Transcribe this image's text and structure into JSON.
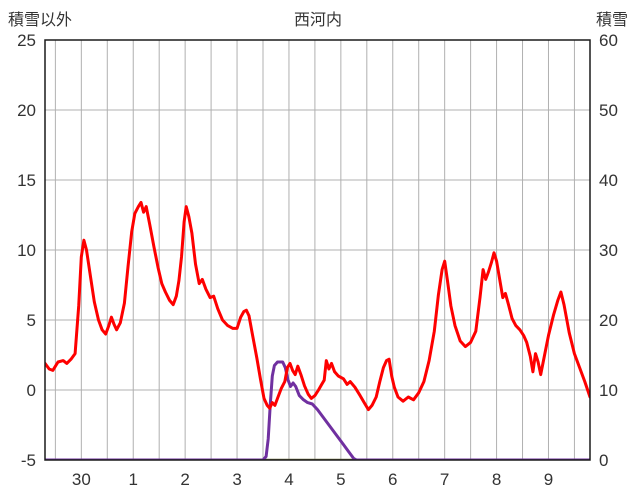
{
  "chart_data": {
    "type": "line",
    "title": "西河内",
    "left_axis_title": "積雪以外",
    "right_axis_title": "積雪",
    "x_domain": [
      -0.7,
      9.8
    ],
    "x_gridlines": {
      "from": -0.5,
      "to": 9.5,
      "step": 0.5
    },
    "x_tick_labels": [
      {
        "label": "30",
        "x": 0
      },
      {
        "label": "1",
        "x": 1
      },
      {
        "label": "2",
        "x": 2
      },
      {
        "label": "3",
        "x": 3
      },
      {
        "label": "4",
        "x": 4
      },
      {
        "label": "5",
        "x": 5
      },
      {
        "label": "6",
        "x": 6
      },
      {
        "label": "7",
        "x": 7
      },
      {
        "label": "8",
        "x": 8
      },
      {
        "label": "9",
        "x": 9
      }
    ],
    "left_axis": {
      "min": -5,
      "max": 25,
      "ticks": [
        25,
        20,
        15,
        10,
        5,
        0,
        -5
      ]
    },
    "right_axis": {
      "min": 0,
      "max": 60,
      "ticks": [
        60,
        50,
        40,
        30,
        20,
        10,
        0
      ]
    },
    "colors": {
      "red": "#fe0000",
      "purple": "#7030a0",
      "olive": "#6f6f3a",
      "grid": "#b0b0b0",
      "border": "#1a1a1a",
      "text": "#333333"
    },
    "series": [
      {
        "name": "line-olive",
        "axis": "right",
        "color_key": "olive",
        "width": 2.5,
        "points": [
          [
            3.55,
            0
          ],
          [
            5.3,
            0
          ]
        ]
      },
      {
        "name": "line-purple",
        "axis": "right",
        "color_key": "purple",
        "width": 3,
        "points": [
          [
            -0.7,
            0
          ],
          [
            3.5,
            0
          ],
          [
            3.56,
            0.5
          ],
          [
            3.6,
            3
          ],
          [
            3.64,
            8
          ],
          [
            3.68,
            12
          ],
          [
            3.72,
            13.5
          ],
          [
            3.78,
            14
          ],
          [
            3.88,
            14
          ],
          [
            3.93,
            13.2
          ],
          [
            3.98,
            11.5
          ],
          [
            4.03,
            10.5
          ],
          [
            4.08,
            11
          ],
          [
            4.13,
            10.5
          ],
          [
            4.2,
            9.2
          ],
          [
            4.28,
            8.6
          ],
          [
            4.36,
            8.2
          ],
          [
            4.45,
            8.0
          ],
          [
            4.55,
            7.2
          ],
          [
            4.65,
            6.2
          ],
          [
            4.75,
            5.2
          ],
          [
            4.85,
            4.2
          ],
          [
            4.95,
            3.2
          ],
          [
            5.05,
            2.2
          ],
          [
            5.15,
            1.2
          ],
          [
            5.25,
            0.2
          ],
          [
            5.3,
            0
          ],
          [
            9.8,
            0
          ]
        ]
      },
      {
        "name": "line-red",
        "axis": "left",
        "color_key": "red",
        "width": 3,
        "points": [
          [
            -0.7,
            1.9
          ],
          [
            -0.62,
            1.5
          ],
          [
            -0.55,
            1.4
          ],
          [
            -0.45,
            2.0
          ],
          [
            -0.35,
            2.1
          ],
          [
            -0.28,
            1.9
          ],
          [
            -0.2,
            2.2
          ],
          [
            -0.12,
            2.6
          ],
          [
            -0.05,
            6.0
          ],
          [
            0.0,
            9.5
          ],
          [
            0.05,
            10.7
          ],
          [
            0.1,
            10.0
          ],
          [
            0.18,
            8.0
          ],
          [
            0.25,
            6.3
          ],
          [
            0.33,
            5.0
          ],
          [
            0.4,
            4.3
          ],
          [
            0.47,
            4.0
          ],
          [
            0.53,
            4.6
          ],
          [
            0.58,
            5.2
          ],
          [
            0.63,
            4.7
          ],
          [
            0.68,
            4.3
          ],
          [
            0.75,
            4.8
          ],
          [
            0.83,
            6.2
          ],
          [
            0.9,
            8.8
          ],
          [
            0.97,
            11.3
          ],
          [
            1.03,
            12.6
          ],
          [
            1.1,
            13.1
          ],
          [
            1.15,
            13.4
          ],
          [
            1.2,
            12.7
          ],
          [
            1.25,
            13.1
          ],
          [
            1.32,
            11.8
          ],
          [
            1.4,
            10.2
          ],
          [
            1.48,
            8.7
          ],
          [
            1.55,
            7.6
          ],
          [
            1.62,
            7.0
          ],
          [
            1.7,
            6.4
          ],
          [
            1.77,
            6.1
          ],
          [
            1.83,
            6.7
          ],
          [
            1.88,
            7.8
          ],
          [
            1.93,
            9.5
          ],
          [
            1.98,
            12.0
          ],
          [
            2.02,
            13.1
          ],
          [
            2.07,
            12.4
          ],
          [
            2.13,
            11.2
          ],
          [
            2.2,
            9.0
          ],
          [
            2.27,
            7.6
          ],
          [
            2.33,
            7.9
          ],
          [
            2.4,
            7.2
          ],
          [
            2.48,
            6.6
          ],
          [
            2.55,
            6.7
          ],
          [
            2.63,
            5.8
          ],
          [
            2.72,
            5.0
          ],
          [
            2.82,
            4.6
          ],
          [
            2.92,
            4.4
          ],
          [
            3.0,
            4.4
          ],
          [
            3.07,
            5.2
          ],
          [
            3.13,
            5.6
          ],
          [
            3.18,
            5.7
          ],
          [
            3.23,
            5.3
          ],
          [
            3.3,
            3.9
          ],
          [
            3.38,
            2.3
          ],
          [
            3.45,
            0.8
          ],
          [
            3.52,
            -0.6
          ],
          [
            3.58,
            -1.1
          ],
          [
            3.63,
            -1.3
          ],
          [
            3.68,
            -0.9
          ],
          [
            3.73,
            -1.1
          ],
          [
            3.78,
            -0.6
          ],
          [
            3.85,
            0.1
          ],
          [
            3.92,
            0.6
          ],
          [
            3.97,
            1.6
          ],
          [
            4.02,
            1.9
          ],
          [
            4.07,
            1.4
          ],
          [
            4.12,
            1.1
          ],
          [
            4.17,
            1.7
          ],
          [
            4.23,
            1.1
          ],
          [
            4.3,
            0.3
          ],
          [
            4.37,
            -0.3
          ],
          [
            4.43,
            -0.6
          ],
          [
            4.5,
            -0.4
          ],
          [
            4.57,
            0.0
          ],
          [
            4.63,
            0.4
          ],
          [
            4.68,
            0.7
          ],
          [
            4.72,
            2.1
          ],
          [
            4.77,
            1.5
          ],
          [
            4.82,
            1.9
          ],
          [
            4.88,
            1.3
          ],
          [
            4.95,
            1.0
          ],
          [
            5.05,
            0.8
          ],
          [
            5.12,
            0.4
          ],
          [
            5.18,
            0.6
          ],
          [
            5.27,
            0.2
          ],
          [
            5.37,
            -0.4
          ],
          [
            5.45,
            -0.9
          ],
          [
            5.53,
            -1.4
          ],
          [
            5.6,
            -1.1
          ],
          [
            5.68,
            -0.5
          ],
          [
            5.75,
            0.6
          ],
          [
            5.82,
            1.6
          ],
          [
            5.88,
            2.1
          ],
          [
            5.93,
            2.2
          ],
          [
            5.98,
            1.0
          ],
          [
            6.03,
            0.2
          ],
          [
            6.1,
            -0.5
          ],
          [
            6.2,
            -0.8
          ],
          [
            6.3,
            -0.5
          ],
          [
            6.4,
            -0.7
          ],
          [
            6.5,
            -0.2
          ],
          [
            6.6,
            0.6
          ],
          [
            6.7,
            2.1
          ],
          [
            6.8,
            4.2
          ],
          [
            6.88,
            6.8
          ],
          [
            6.95,
            8.6
          ],
          [
            7.0,
            9.2
          ],
          [
            7.05,
            7.9
          ],
          [
            7.12,
            6.0
          ],
          [
            7.2,
            4.6
          ],
          [
            7.3,
            3.5
          ],
          [
            7.4,
            3.1
          ],
          [
            7.5,
            3.4
          ],
          [
            7.6,
            4.2
          ],
          [
            7.68,
            6.6
          ],
          [
            7.74,
            8.6
          ],
          [
            7.79,
            7.9
          ],
          [
            7.84,
            8.4
          ],
          [
            7.9,
            9.1
          ],
          [
            7.95,
            9.8
          ],
          [
            8.0,
            9.2
          ],
          [
            8.06,
            7.9
          ],
          [
            8.12,
            6.6
          ],
          [
            8.17,
            6.9
          ],
          [
            8.23,
            6.1
          ],
          [
            8.3,
            5.1
          ],
          [
            8.37,
            4.6
          ],
          [
            8.45,
            4.3
          ],
          [
            8.52,
            3.9
          ],
          [
            8.58,
            3.4
          ],
          [
            8.65,
            2.4
          ],
          [
            8.7,
            1.3
          ],
          [
            8.75,
            2.6
          ],
          [
            8.8,
            2.0
          ],
          [
            8.85,
            1.1
          ],
          [
            8.92,
            2.4
          ],
          [
            9.0,
            3.9
          ],
          [
            9.1,
            5.4
          ],
          [
            9.18,
            6.4
          ],
          [
            9.24,
            7.0
          ],
          [
            9.3,
            6.1
          ],
          [
            9.4,
            4.1
          ],
          [
            9.5,
            2.6
          ],
          [
            9.6,
            1.6
          ],
          [
            9.7,
            0.6
          ],
          [
            9.8,
            -0.5
          ]
        ]
      }
    ]
  }
}
